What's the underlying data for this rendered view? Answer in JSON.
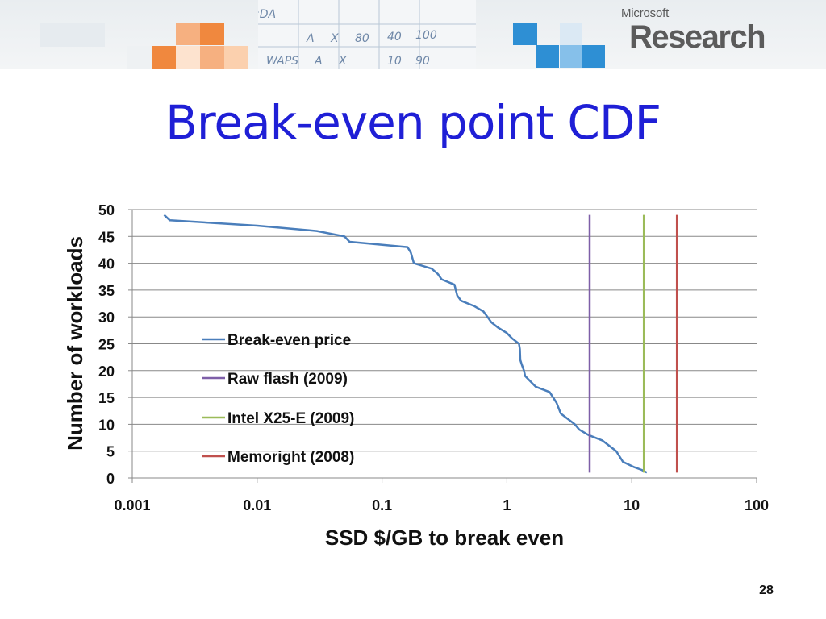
{
  "slide": {
    "title": "Break-even point CDF",
    "page_number": "28"
  },
  "logo": {
    "company": "Microsoft",
    "division": "Research"
  },
  "colors": {
    "title": "#1f1fd6",
    "break_even": "#4a7ebb",
    "raw_flash": "#7e5fa8",
    "intel": "#9bbb59",
    "memoright": "#c0504d",
    "grid": "#888888",
    "header_orange": "#f0883e",
    "header_blue": "#2e8fd4"
  },
  "chart_data": {
    "type": "line",
    "xscale": "log",
    "xlim": [
      0.001,
      100
    ],
    "ylim": [
      0,
      50
    ],
    "xlabel": "SSD $/GB to break even",
    "ylabel": "Number of workloads",
    "xticks": [
      0.001,
      0.01,
      0.1,
      1,
      10,
      100
    ],
    "xtick_labels": [
      "0.001",
      "0.01",
      "0.1",
      "1",
      "10",
      "100"
    ],
    "yticks": [
      0,
      5,
      10,
      15,
      20,
      25,
      30,
      35,
      40,
      45,
      50
    ],
    "ytick_labels": [
      "0",
      "5",
      "10",
      "15",
      "20",
      "25",
      "30",
      "35",
      "40",
      "45",
      "50"
    ],
    "grid": "horizontal",
    "legend_position": "center-left",
    "series": [
      {
        "name": "Break-even price",
        "color": "#4a7ebb",
        "points": [
          [
            0.0018,
            49
          ],
          [
            0.002,
            48
          ],
          [
            0.01,
            47
          ],
          [
            0.03,
            46
          ],
          [
            0.05,
            45
          ],
          [
            0.055,
            44
          ],
          [
            0.16,
            43
          ],
          [
            0.17,
            42
          ],
          [
            0.18,
            40
          ],
          [
            0.25,
            39
          ],
          [
            0.28,
            38
          ],
          [
            0.3,
            37
          ],
          [
            0.38,
            36
          ],
          [
            0.39,
            35
          ],
          [
            0.4,
            34
          ],
          [
            0.43,
            33
          ],
          [
            0.55,
            32
          ],
          [
            0.65,
            31
          ],
          [
            0.7,
            30
          ],
          [
            0.75,
            29
          ],
          [
            0.85,
            28
          ],
          [
            1.0,
            27
          ],
          [
            1.1,
            26
          ],
          [
            1.25,
            25
          ],
          [
            1.27,
            24
          ],
          [
            1.28,
            22
          ],
          [
            1.32,
            21
          ],
          [
            1.37,
            20
          ],
          [
            1.4,
            19
          ],
          [
            1.7,
            17
          ],
          [
            2.2,
            16
          ],
          [
            2.5,
            14
          ],
          [
            2.6,
            13
          ],
          [
            2.7,
            12
          ],
          [
            3.5,
            10
          ],
          [
            3.8,
            9
          ],
          [
            4.5,
            8
          ],
          [
            5.8,
            7
          ],
          [
            7.5,
            5
          ],
          [
            8.5,
            3
          ],
          [
            10.5,
            2
          ],
          [
            12.0,
            1.5
          ],
          [
            13.2,
            1
          ]
        ]
      },
      {
        "name": "Raw flash (2009)",
        "color": "#7e5fa8",
        "x": 4.6,
        "y_range": [
          1,
          49
        ]
      },
      {
        "name": "Intel X25-E (2009)",
        "color": "#9bbb59",
        "x": 12.5,
        "y_range": [
          1,
          49
        ]
      },
      {
        "name": "Memoright (2008)",
        "color": "#c0504d",
        "x": 23.0,
        "y_range": [
          1,
          49
        ]
      }
    ]
  }
}
